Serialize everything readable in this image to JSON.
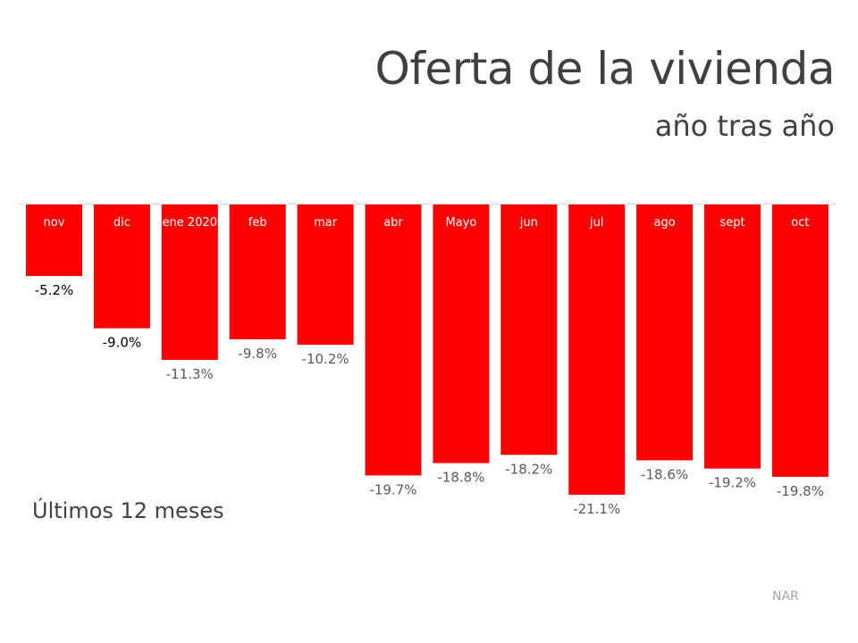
{
  "title": "Oferta de la vivienda",
  "subtitle": "año tras año",
  "note": "Últimos 12 meses",
  "source": "NAR",
  "chart_data": {
    "type": "bar",
    "title": "Oferta de la vivienda",
    "subtitle": "año tras año",
    "categories": [
      "nov",
      "dic",
      "ene 2020",
      "feb",
      "mar",
      "abr",
      "Mayo",
      "jun",
      "jul",
      "ago",
      "sept",
      "oct"
    ],
    "values": [
      -5.2,
      -9.0,
      -11.3,
      -9.8,
      -10.2,
      -19.7,
      -18.8,
      -18.2,
      -21.1,
      -18.6,
      -19.2,
      -19.8
    ],
    "data_labels": [
      "-5.2%",
      "-9.0%",
      "-11.3%",
      "-9.8%",
      "-10.2%",
      "-19.7%",
      "-18.8%",
      "-18.2%",
      "-21.1%",
      "-18.6%",
      "-19.2%",
      "-19.8%"
    ],
    "value_unit": "%",
    "ylim": [
      -22,
      0
    ],
    "grid": false,
    "bar_color": "#ff0000",
    "category_label_color": "#ffffff",
    "data_label_colors": [
      "#000000",
      "#000000",
      "#595959",
      "#595959",
      "#595959",
      "#595959",
      "#595959",
      "#595959",
      "#595959",
      "#595959",
      "#595959",
      "#595959"
    ],
    "xlabel": "",
    "ylabel": ""
  }
}
